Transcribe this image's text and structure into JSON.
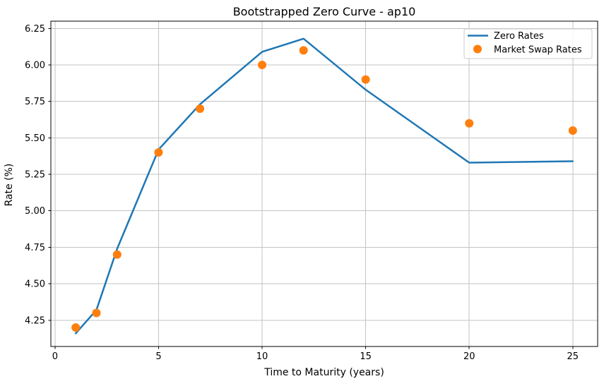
{
  "chart_data": {
    "type": "line+scatter",
    "title": "Bootstrapped Zero Curve - ap10",
    "xlabel": "Time to Maturity (years)",
    "ylabel": "Rate (%)",
    "x": [
      1,
      2,
      3,
      5,
      7,
      10,
      12,
      15,
      20,
      25
    ],
    "series": [
      {
        "name": "Zero Rates",
        "type": "line",
        "color": "#1f77b4",
        "values": [
          4.16,
          4.32,
          4.74,
          5.42,
          5.73,
          6.09,
          6.18,
          5.83,
          5.33,
          5.34
        ]
      },
      {
        "name": "Market Swap Rates",
        "type": "scatter",
        "color": "#ff7f0e",
        "values": [
          4.2,
          4.3,
          4.7,
          5.4,
          5.7,
          6.0,
          6.1,
          5.9,
          5.6,
          5.55
        ]
      }
    ],
    "xlim": [
      -0.2,
      26.2
    ],
    "ylim": [
      4.07,
      6.3
    ],
    "xticks": {
      "values": [
        0,
        5,
        10,
        15,
        20,
        25
      ],
      "labels": [
        "0",
        "5",
        "10",
        "15",
        "20",
        "25"
      ]
    },
    "yticks": {
      "values": [
        4.25,
        4.5,
        4.75,
        5.0,
        5.25,
        5.5,
        5.75,
        6.0,
        6.25
      ],
      "labels": [
        "4.25",
        "4.50",
        "4.75",
        "5.00",
        "5.25",
        "5.50",
        "5.75",
        "6.00",
        "6.25"
      ]
    },
    "grid": true,
    "legend": {
      "location": "upper right",
      "entries": [
        "Zero Rates",
        "Market Swap Rates"
      ]
    },
    "colors": {
      "grid": "#c3c3c3",
      "spine": "#000000",
      "text": "#000000",
      "legend_border": "#cccccc",
      "background": "#ffffff"
    }
  }
}
